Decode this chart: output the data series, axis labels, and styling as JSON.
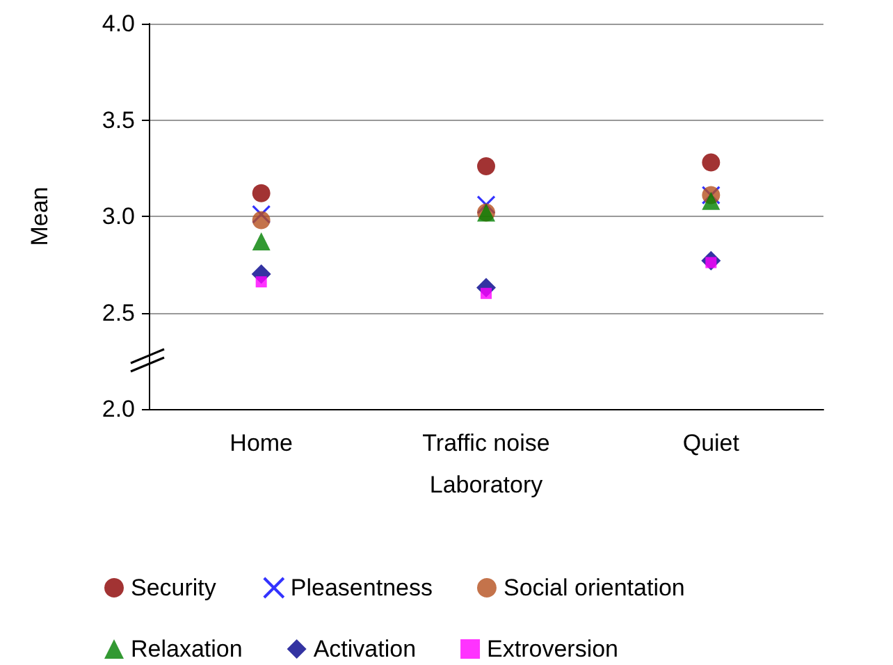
{
  "chart_data": {
    "type": "scatter",
    "xlabel": "Laboratory",
    "ylabel": "Mean",
    "categories": [
      "Home",
      "Traffic noise",
      "Quiet"
    ],
    "ylim": [
      2.0,
      4.0
    ],
    "yticks": [
      {
        "value": 2,
        "label": "2.0"
      },
      {
        "value": 2.5,
        "label": "2.5"
      },
      {
        "value": 3,
        "label": "3.0"
      },
      {
        "value": 3.5,
        "label": "3.5"
      },
      {
        "value": 4,
        "label": "4.0"
      }
    ],
    "grid": "y",
    "legend": "bottom",
    "series": [
      {
        "name": "Security",
        "color": "#8b0000",
        "marker": "circle",
        "values": [
          3.12,
          3.26,
          3.28
        ]
      },
      {
        "name": "Pleasentness",
        "color": "#0000ff",
        "marker": "cross",
        "values": [
          3.01,
          3.06,
          3.11
        ]
      },
      {
        "name": "Social orientation",
        "color": "#b5501e",
        "marker": "circle",
        "values": [
          2.98,
          3.02,
          3.11
        ]
      },
      {
        "name": "Relaxation",
        "color": "#008000",
        "marker": "triangle",
        "values": [
          2.87,
          3.02,
          3.08
        ]
      },
      {
        "name": "Activation",
        "color": "#00008b",
        "marker": "diamond",
        "values": [
          2.7,
          2.63,
          2.77
        ]
      },
      {
        "name": "Extroversion",
        "color": "#ff00ff",
        "marker": "square",
        "values": [
          2.66,
          2.6,
          2.76
        ]
      }
    ]
  }
}
